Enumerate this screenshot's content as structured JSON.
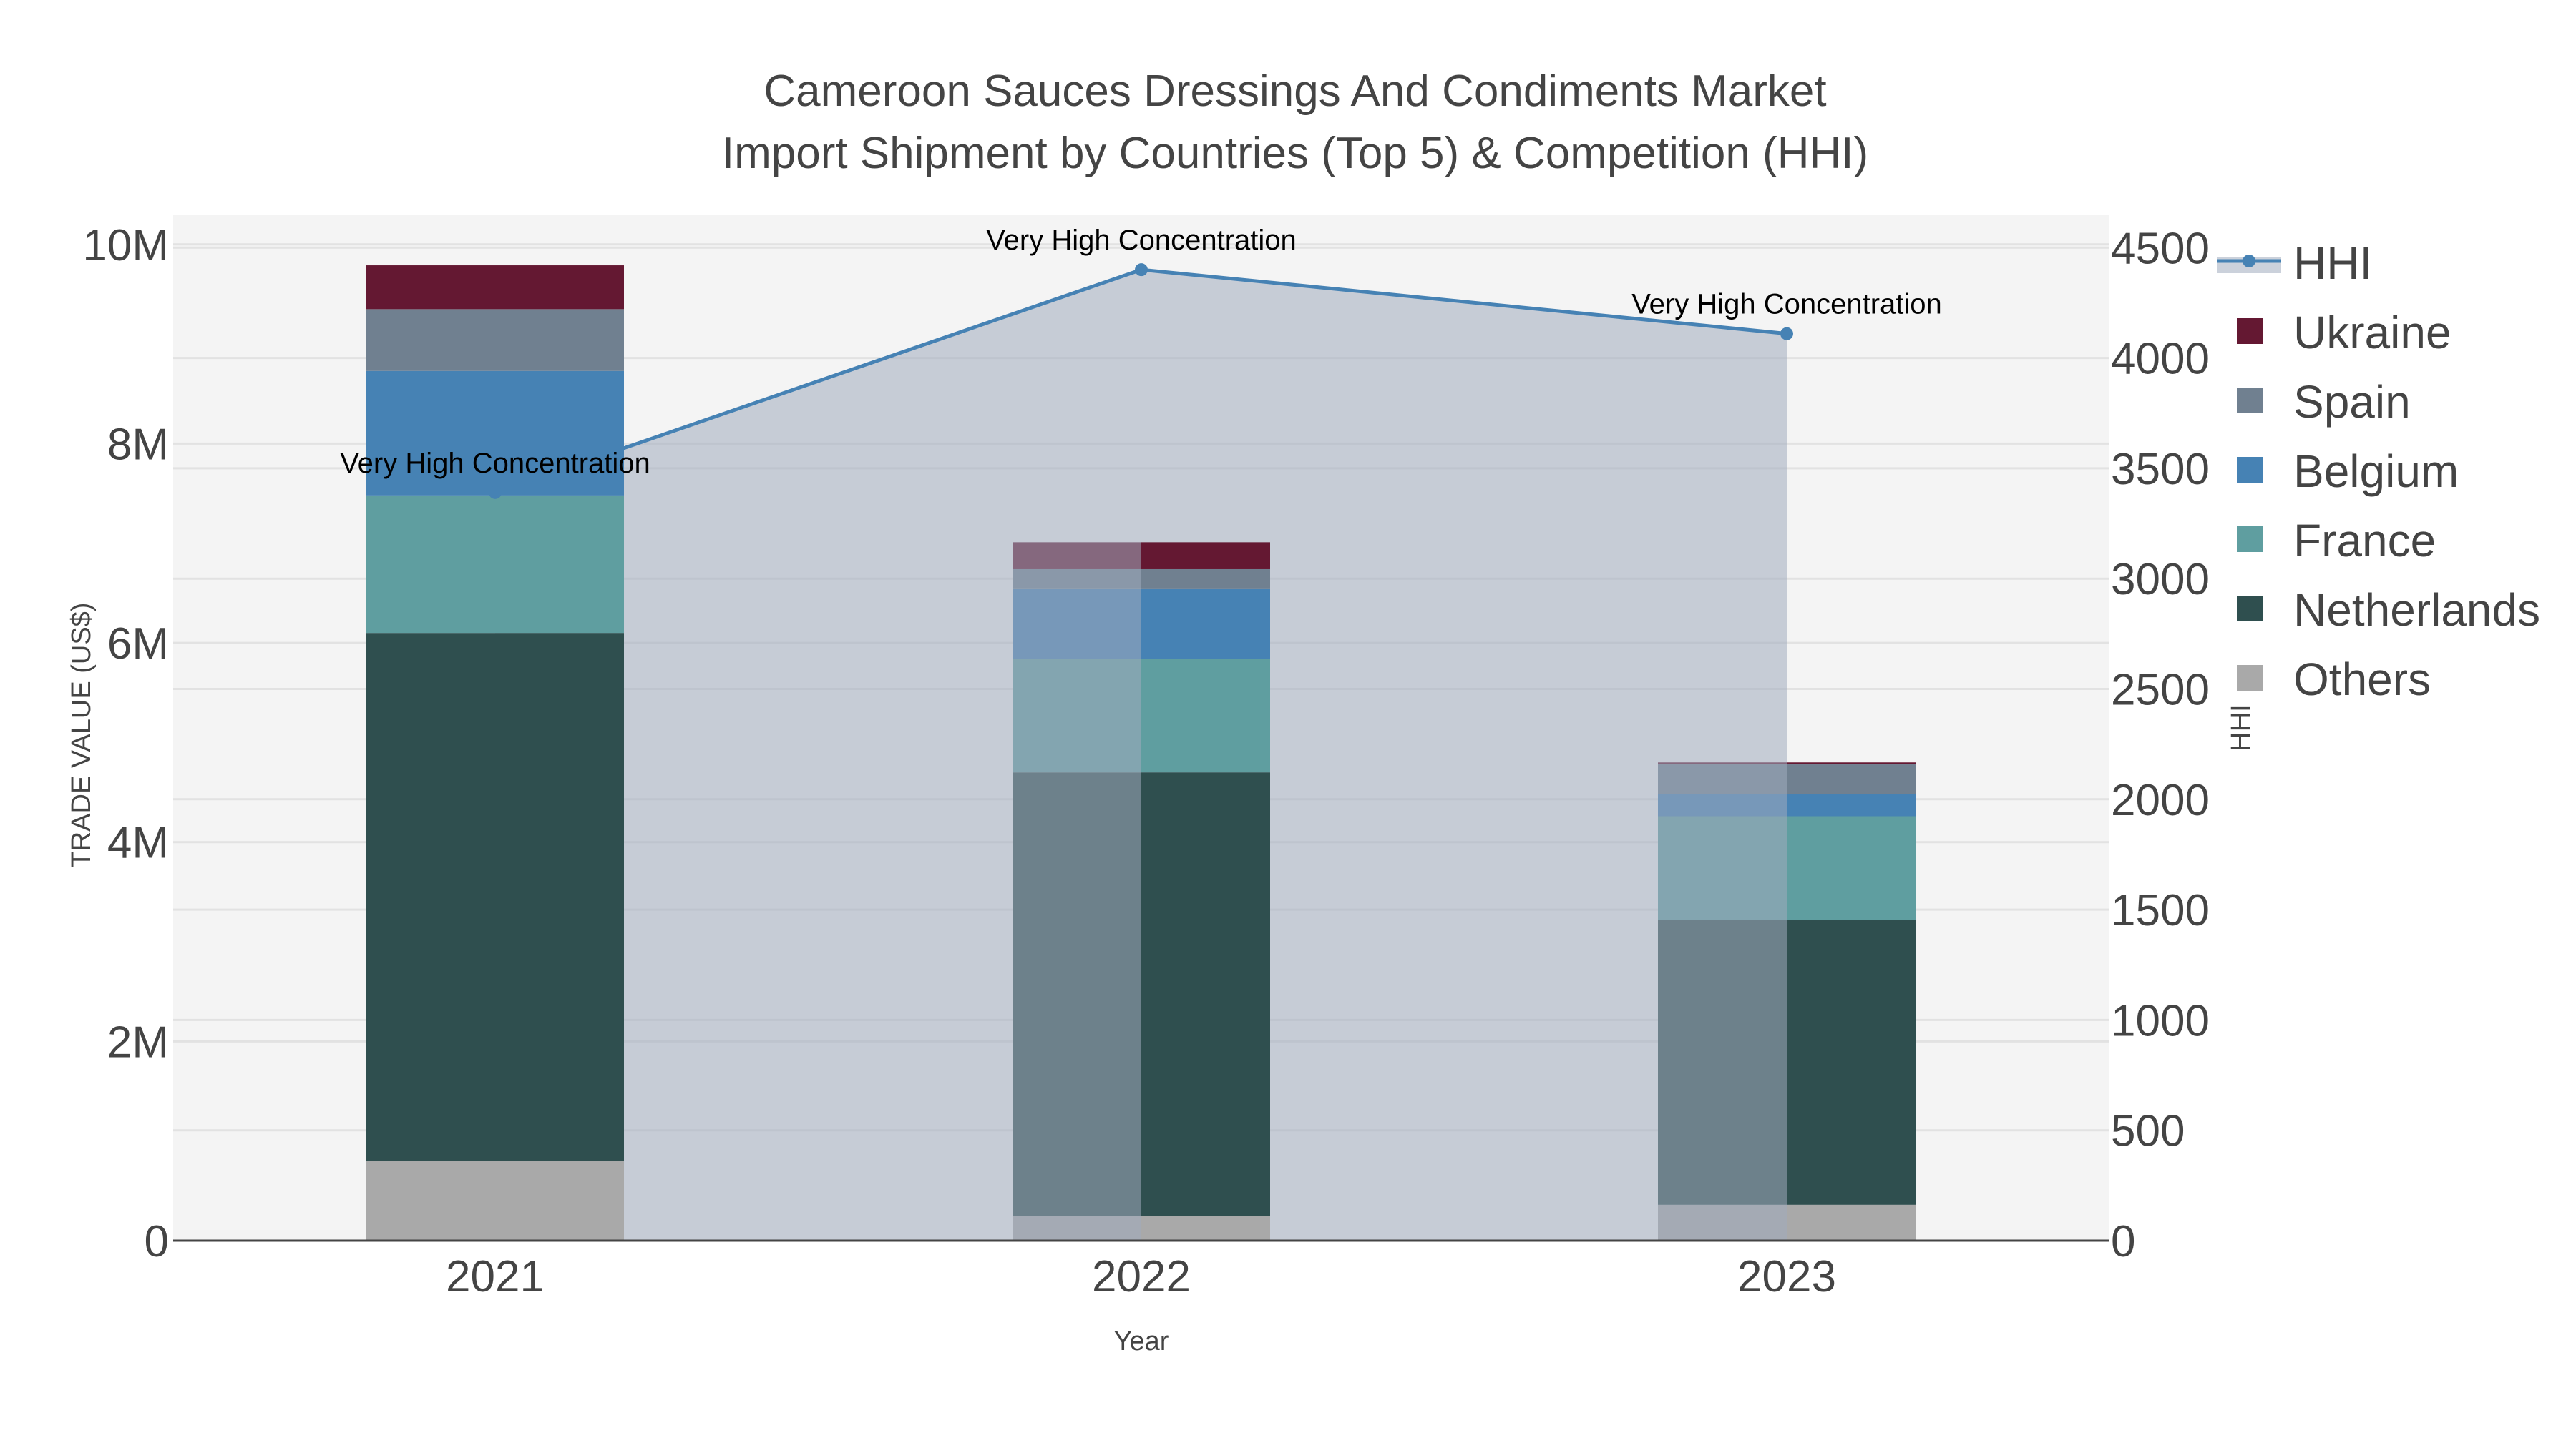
{
  "chart_data": {
    "type": "bar",
    "title_line1": "Cameroon Sauces Dressings And Condiments Market",
    "title_line2": "Import Shipment by Countries (Top 5) & Competition (HHI)",
    "xlabel": "Year",
    "ylabel": "TRADE VALUE (US$)",
    "y2label": "HHI",
    "categories": [
      "2021",
      "2022",
      "2023"
    ],
    "ylim": [
      0,
      10300000
    ],
    "y2lim": [
      0,
      4650
    ],
    "yticks": [
      {
        "value": 0,
        "label": "0"
      },
      {
        "value": 2000000,
        "label": "2M"
      },
      {
        "value": 4000000,
        "label": "4M"
      },
      {
        "value": 6000000,
        "label": "6M"
      },
      {
        "value": 8000000,
        "label": "8M"
      },
      {
        "value": 10000000,
        "label": "10M"
      }
    ],
    "y2ticks": [
      {
        "value": 0,
        "label": "0"
      },
      {
        "value": 500,
        "label": "500"
      },
      {
        "value": 1000,
        "label": "1000"
      },
      {
        "value": 1500,
        "label": "1500"
      },
      {
        "value": 2000,
        "label": "2000"
      },
      {
        "value": 2500,
        "label": "2500"
      },
      {
        "value": 3000,
        "label": "3000"
      },
      {
        "value": 3500,
        "label": "3500"
      },
      {
        "value": 4000,
        "label": "4000"
      },
      {
        "value": 4500,
        "label": "4500"
      }
    ],
    "series": [
      {
        "name": "Others",
        "color": "#a9a9a9",
        "values": [
          800000,
          250000,
          360000
        ]
      },
      {
        "name": "Netherlands",
        "color": "#2f4f4f",
        "values": [
          5300000,
          4450000,
          2860000
        ]
      },
      {
        "name": "France",
        "color": "#5f9ea0",
        "values": [
          1380000,
          1140000,
          1040000
        ]
      },
      {
        "name": "Belgium",
        "color": "#4682b4",
        "values": [
          1250000,
          700000,
          220000
        ]
      },
      {
        "name": "Spain",
        "color": "#708090",
        "values": [
          620000,
          200000,
          300000
        ]
      },
      {
        "name": "Ukraine",
        "color": "#641832",
        "values": [
          440000,
          270000,
          20000
        ]
      }
    ],
    "hhi": {
      "name": "HHI",
      "color": "#4682b4",
      "fill": "rgba(160,172,190,0.55)",
      "values": [
        3390,
        4400,
        4110
      ],
      "labels": [
        "Very High Concentration",
        "Very High Concentration",
        "Very High Concentration"
      ]
    },
    "legend": [
      "HHI",
      "Ukraine",
      "Spain",
      "Belgium",
      "France",
      "Netherlands",
      "Others"
    ],
    "legend_position": "right"
  }
}
